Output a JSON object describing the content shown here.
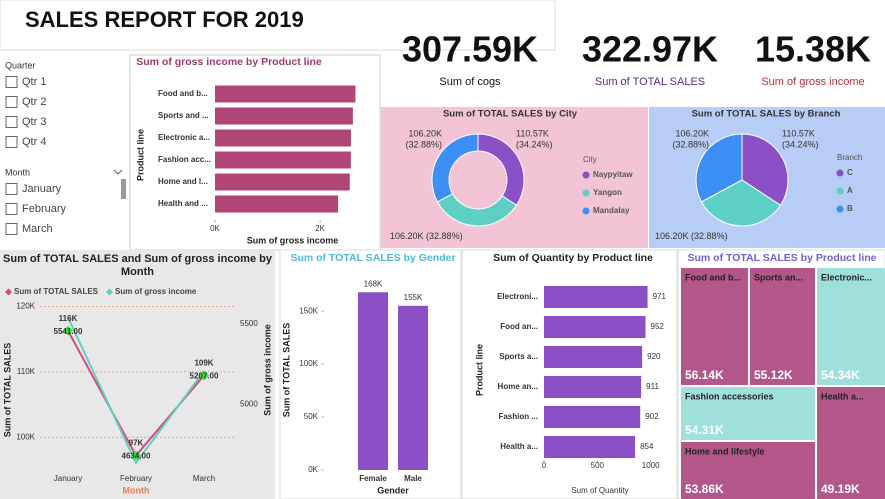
{
  "title": "SALES REPORT FOR 2019",
  "filters": {
    "quarter": {
      "title": "Quarter",
      "items": [
        "Qtr 1",
        "Qtr 2",
        "Qtr 3",
        "Qtr 4"
      ]
    },
    "month": {
      "title": "Month",
      "items": [
        "January",
        "February",
        "March"
      ]
    }
  },
  "kpis": [
    {
      "value": "307.59K",
      "label": "Sum of cogs"
    },
    {
      "value": "322.97K",
      "label": "Sum of TOTAL SALES"
    },
    {
      "value": "15.38K",
      "label": "Sum of gross income"
    }
  ],
  "chart_data": [
    {
      "type": "hbar",
      "title": "Sum of gross income by Product line",
      "categories": [
        "Food and b...",
        "Sports and ...",
        "Electronic a...",
        "Fashion acc...",
        "Home and l...",
        "Health and ..."
      ],
      "values": [
        2673,
        2624,
        2588,
        2586,
        2565,
        2343
      ],
      "color": "#b04577",
      "xlim": [
        0,
        2950
      ],
      "xticks": [
        {
          "value": 0,
          "label": "0K"
        },
        {
          "value": 2000,
          "label": "2K"
        }
      ],
      "x_label": "Sum of gross income",
      "y_label": "Product line"
    },
    {
      "type": "donut",
      "title": "Sum of TOTAL SALES by City",
      "legend_title": "City",
      "categories": [
        "Naypyitaw",
        "Yangon",
        "Mandalay"
      ],
      "values": [
        110570,
        106200,
        106200
      ],
      "value_labels": [
        "110.57K",
        "106.20K",
        "106.20K"
      ],
      "shares": [
        34.24,
        32.88,
        32.88
      ],
      "share_labels": [
        "(34.24%)",
        "(32.88%)",
        "(32.88%)"
      ],
      "colors": [
        "#8b4fc6",
        "#5ecfc5",
        "#3d8ef5"
      ]
    },
    {
      "type": "pie",
      "title": "Sum of TOTAL SALES by Branch",
      "legend_title": "Branch",
      "categories": [
        "C",
        "A",
        "B"
      ],
      "values": [
        110570,
        106200,
        106200
      ],
      "value_labels": [
        "110.57K",
        "106.20K",
        "106.20K"
      ],
      "shares": [
        34.24,
        32.88,
        32.88
      ],
      "share_labels": [
        "(34.24%)",
        "(32.88%)",
        "(32.88%)"
      ],
      "colors": [
        "#8b4fc6",
        "#5ecfc5",
        "#3d8ef5"
      ]
    },
    {
      "type": "line",
      "title": "Sum of TOTAL SALES and Sum of gross income by Month",
      "categories": [
        "January",
        "February",
        "March"
      ],
      "series": [
        {
          "name": "Sum of TOTAL SALES",
          "color": "#d6497a",
          "values": [
            116290,
            97220,
            109460
          ],
          "value_labels": [
            "116K",
            "97K",
            "109K"
          ]
        },
        {
          "name": "Sum of gross income",
          "color": "#5ecfc5",
          "axis": "y2",
          "values": [
            5541,
            4634,
            5207
          ],
          "value_labels": [
            "5541.00",
            "4634.00",
            "5207.00"
          ]
        }
      ],
      "ylim": [
        95000,
        121000
      ],
      "yticks": [
        {
          "value": 100000,
          "label": "100K"
        },
        {
          "value": 110000,
          "label": "110K"
        },
        {
          "value": 120000,
          "label": "120K"
        }
      ],
      "y2lim": [
        4590,
        5650
      ],
      "y2ticks": [
        5000,
        5500
      ],
      "x_label": "Month",
      "y_label": "Sum of TOTAL SALES",
      "y2_label": "Sum of gross income",
      "marker_color": "#3ee63e",
      "grid": true
    },
    {
      "type": "bar",
      "title": "Sum of TOTAL SALES by Gender",
      "categories": [
        "Female",
        "Male"
      ],
      "values": [
        167880,
        155080
      ],
      "value_labels": [
        "168K",
        "155K"
      ],
      "color": "#8b4fc6",
      "ylim": [
        0,
        170000
      ],
      "yticks": [
        {
          "value": 0,
          "label": "0K"
        },
        {
          "value": 50000,
          "label": "50K"
        },
        {
          "value": 100000,
          "label": "100K"
        },
        {
          "value": 150000,
          "label": "150K"
        }
      ],
      "x_label": "Gender",
      "y_label": "Sum of TOTAL SALES"
    },
    {
      "type": "hbar",
      "title": "Sum of Quantity by Product line",
      "categories": [
        "Electroni...",
        "Food an...",
        "Sports a...",
        "Home an...",
        "Fashion ...",
        "Health a..."
      ],
      "values": [
        971,
        952,
        920,
        911,
        902,
        854
      ],
      "color": "#8b4fc6",
      "xlim": [
        0,
        1050
      ],
      "xticks": [
        0,
        500,
        1000
      ],
      "x_label": "Sum of Quantity",
      "y_label": "Product line"
    },
    {
      "type": "treemap",
      "title": "Sum of TOTAL SALES by Product line",
      "categories": [
        "Food and b...",
        "Sports an...",
        "Electronic...",
        "Fashion accessories",
        "Home and lifestyle",
        "Health a..."
      ],
      "values": [
        56140,
        55120,
        54340,
        54310,
        53860,
        49190
      ],
      "value_labels": [
        "56.14K",
        "55.12K",
        "54.34K",
        "54.31K",
        "53.86K",
        "49.19K"
      ],
      "colors": [
        "#b3578a",
        "#b3578a",
        "#9fe0dc",
        "#9fe0dc",
        "#b3578a",
        "#b3578a"
      ]
    }
  ]
}
